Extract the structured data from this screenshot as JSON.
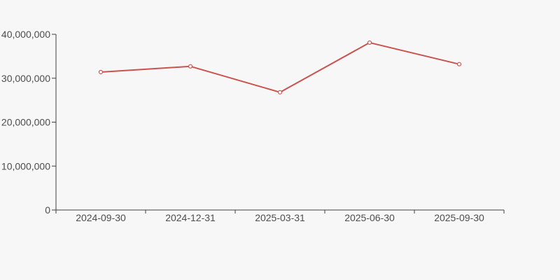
{
  "chart_data": {
    "type": "line",
    "title": "",
    "xlabel": "",
    "ylabel": "",
    "categories": [
      "2024-09-30",
      "2024-12-31",
      "2025-03-31",
      "2025-06-30",
      "2025-09-30"
    ],
    "values": [
      31400000,
      32700000,
      26800000,
      38100000,
      33200000
    ],
    "ylim": [
      0,
      40000000
    ],
    "yticks": [
      0,
      10000000,
      20000000,
      30000000,
      40000000
    ],
    "ytick_labels": [
      "0",
      "10,000,000",
      "20,000,000",
      "30,000,000",
      "40,000,000"
    ],
    "grid": false,
    "legend": "none",
    "marker": "open-circle",
    "colors": {
      "line": "#c9544f",
      "marker_fill": "#ffffff",
      "background": "#f7f7f7",
      "axis": "#3f3f3f",
      "text": "#4d4d4d"
    }
  }
}
